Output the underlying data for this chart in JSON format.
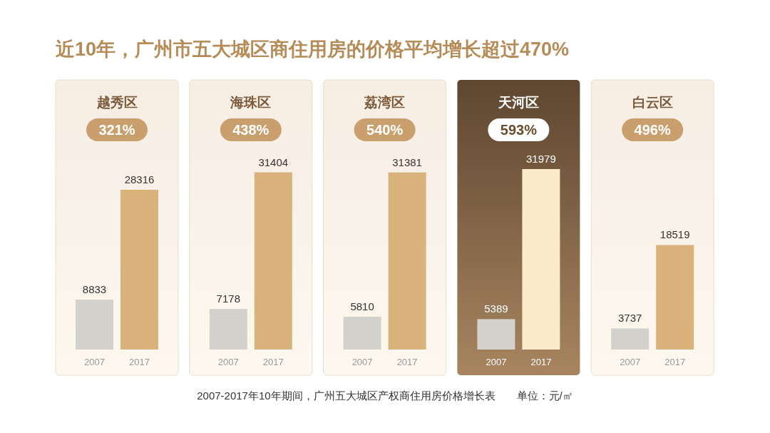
{
  "chart_data": [
    {
      "type": "other",
      "title": "近10年，广州市五大城区商住用房的价格平均增长超过470%",
      "annotations": [
        "2007-2017年10年期间，广州五大城区产权商住用房价格增长表　　单位：元/㎡"
      ]
    },
    {
      "type": "bar",
      "title": "越秀区",
      "categories": [
        "2007",
        "2017"
      ],
      "values": [
        8833,
        28316
      ],
      "colors": [
        "#d3d1cb",
        "#d9b27c"
      ],
      "data_labels": true,
      "annotations": [
        "321%"
      ]
    },
    {
      "type": "bar",
      "title": "海珠区",
      "categories": [
        "2007",
        "2017"
      ],
      "values": [
        7178,
        31404
      ],
      "colors": [
        "#d3d1cb",
        "#d9b27c"
      ],
      "data_labels": true,
      "annotations": [
        "438%"
      ]
    },
    {
      "type": "bar",
      "title": "荔湾区",
      "categories": [
        "2007",
        "2017"
      ],
      "values": [
        5810,
        31381
      ],
      "colors": [
        "#d3d1cb",
        "#d9b27c"
      ],
      "data_labels": true,
      "annotations": [
        "540%"
      ]
    },
    {
      "type": "bar",
      "title": "天河区",
      "categories": [
        "2007",
        "2017"
      ],
      "values": [
        5389,
        31979
      ],
      "colors": [
        "#d3d1cb",
        "#fbebc8"
      ],
      "data_labels": true,
      "annotations": [
        "593%"
      ]
    },
    {
      "type": "bar",
      "title": "白云区",
      "categories": [
        "2007",
        "2017"
      ],
      "values": [
        3737,
        18519
      ],
      "colors": [
        "#d3d1cb",
        "#d9b27c"
      ],
      "data_labels": true,
      "annotations": [
        "496%"
      ]
    }
  ]
}
